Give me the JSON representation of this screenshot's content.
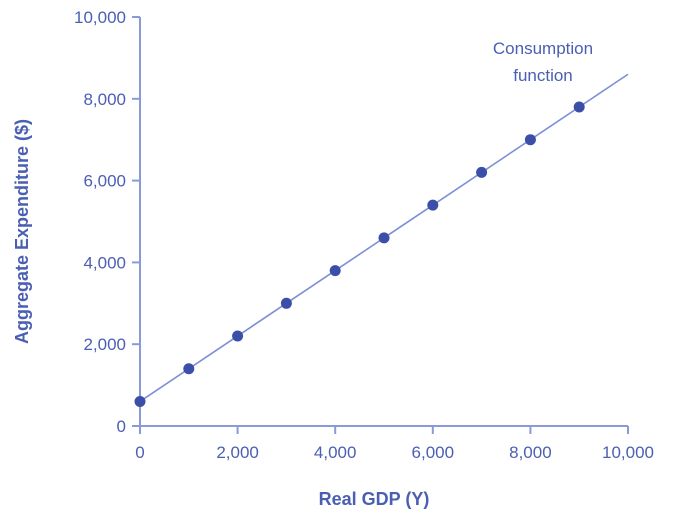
{
  "chart_data": {
    "type": "scatter",
    "title": "",
    "xlabel": "Real GDP (Y)",
    "ylabel": "Aggregate Expenditure ($)",
    "xlim": [
      0,
      10000
    ],
    "ylim": [
      0,
      10000
    ],
    "x_ticks": [
      "0",
      "2,000",
      "4,000",
      "6,000",
      "8,000",
      "10,000"
    ],
    "y_ticks": [
      "0",
      "2,000",
      "4,000",
      "6,000",
      "8,000",
      "10,000"
    ],
    "grid": false,
    "legend": "none",
    "series": [
      {
        "name": "Consumption function",
        "x": [
          0,
          1000,
          2000,
          3000,
          4000,
          5000,
          6000,
          7000,
          8000,
          9000
        ],
        "y": [
          600,
          1400,
          2200,
          3000,
          3800,
          4600,
          5400,
          6200,
          7000,
          7800
        ],
        "line": {
          "x": [
            0,
            10000
          ],
          "y": [
            600,
            8600
          ]
        }
      }
    ],
    "annotations": [
      {
        "text_lines": [
          "Consumption",
          "function"
        ]
      }
    ],
    "colors": {
      "line": "#7c8fd6",
      "marker": "#3b4fa8",
      "text": "#4a5fb3",
      "axis": "#8a9ad8"
    }
  }
}
